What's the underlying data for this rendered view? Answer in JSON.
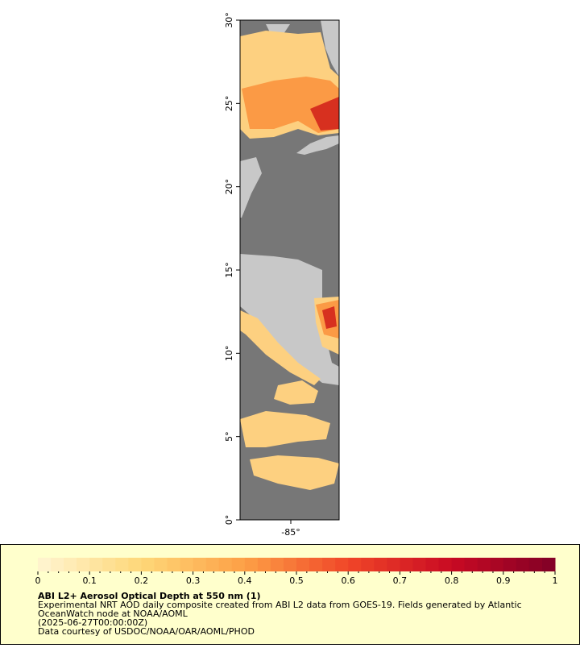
{
  "map": {
    "lat_labels": [
      "0°",
      "5°",
      "10°",
      "15°",
      "20°",
      "25°",
      "30°"
    ],
    "lon_labels": [
      "-85°"
    ]
  },
  "legend": {
    "ticks": [
      "0",
      "0.1",
      "0.2",
      "0.3",
      "0.4",
      "0.5",
      "0.6",
      "0.7",
      "0.8",
      "0.9",
      "1"
    ],
    "title": "ABI L2+ Aerosol Optical Depth at 550 nm (1)",
    "lines": [
      "Experimental NRT AOD daily composite created from ABI L2 data from GOES-19. Fields generated by Atlantic",
      "OceanWatch node at NOAA/AOML",
      "(2025-06-27T00:00:00Z)",
      "Data courtesy of USDOC/NOAA/OAR/AOML/PHOD"
    ]
  }
}
